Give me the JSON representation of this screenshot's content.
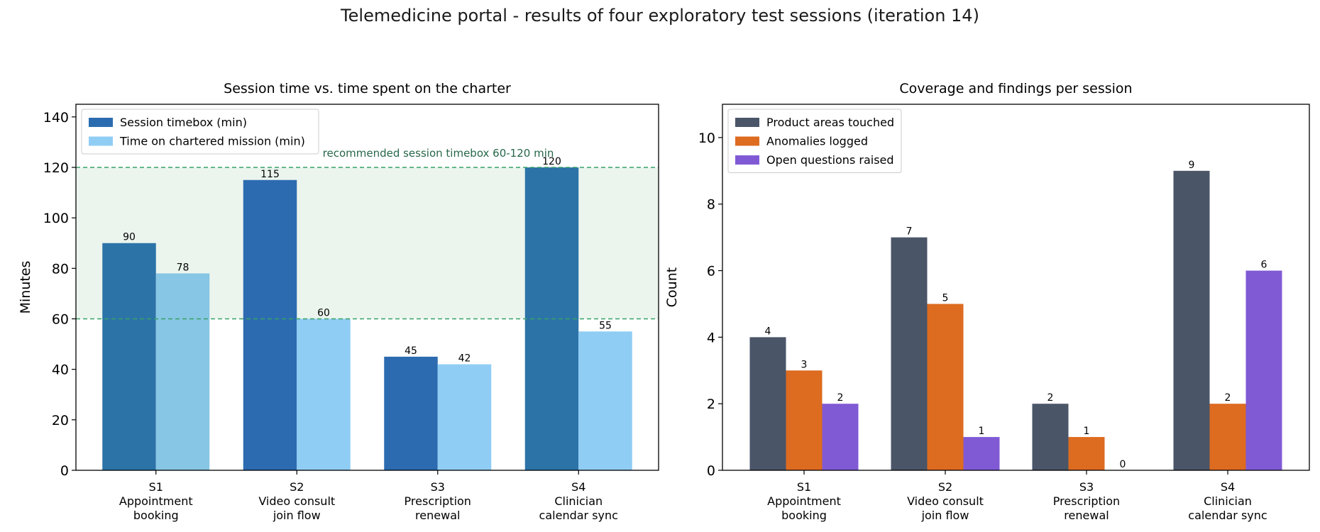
{
  "page": {
    "title": "Telemedicine portal - results of four exploratory test sessions (iteration 14)"
  },
  "chart_data": [
    {
      "type": "bar",
      "title": "Session time vs. time spent on the charter",
      "xlabel": "",
      "ylabel": "Minutes",
      "ylim": [
        0,
        145
      ],
      "yticks": [
        0,
        20,
        40,
        60,
        80,
        100,
        120,
        140
      ],
      "categories": [
        "S1\nAppointment\nbooking",
        "S2\nVideo consult\njoin flow",
        "S3\nPrescription\nrenewal",
        "S4\nClinician\ncalendar sync"
      ],
      "series": [
        {
          "name": "Session timebox (min)",
          "values": [
            90,
            115,
            45,
            120
          ],
          "color": "#2b6cb0",
          "bar_colors": [
            "#2c73a8",
            "#2c6bb0",
            "#2c6bb0",
            "#2c73a8"
          ]
        },
        {
          "name": "Time on chartered mission (min)",
          "values": [
            78,
            60,
            42,
            55
          ],
          "color": "#90cdf4",
          "bar_colors": [
            "#87c6e4",
            "#90cdf4",
            "#90cdf4",
            "#90cdf4"
          ]
        }
      ],
      "band": {
        "from": 60,
        "to": 120,
        "label": "recommended session timebox 60-120 min",
        "fill": "#e6f2ea",
        "line_color": "#38a169",
        "label_color": "#276749"
      },
      "legend": "top-left",
      "grid": false
    },
    {
      "type": "bar",
      "title": "Coverage and findings per session",
      "xlabel": "",
      "ylabel": "Count",
      "ylim": [
        0,
        11
      ],
      "yticks": [
        0,
        2,
        4,
        6,
        8,
        10
      ],
      "categories": [
        "S1\nAppointment\nbooking",
        "S2\nVideo consult\njoin flow",
        "S3\nPrescription\nrenewal",
        "S4\nClinician\ncalendar sync"
      ],
      "series": [
        {
          "name": "Product areas touched",
          "values": [
            4,
            7,
            2,
            9
          ],
          "color": "#4a5568"
        },
        {
          "name": "Anomalies logged",
          "values": [
            3,
            5,
            1,
            2
          ],
          "color": "#dd6b20"
        },
        {
          "name": "Open questions raised",
          "values": [
            2,
            1,
            0,
            6
          ],
          "color": "#805ad5"
        }
      ],
      "legend": "top-left",
      "grid": false
    }
  ]
}
